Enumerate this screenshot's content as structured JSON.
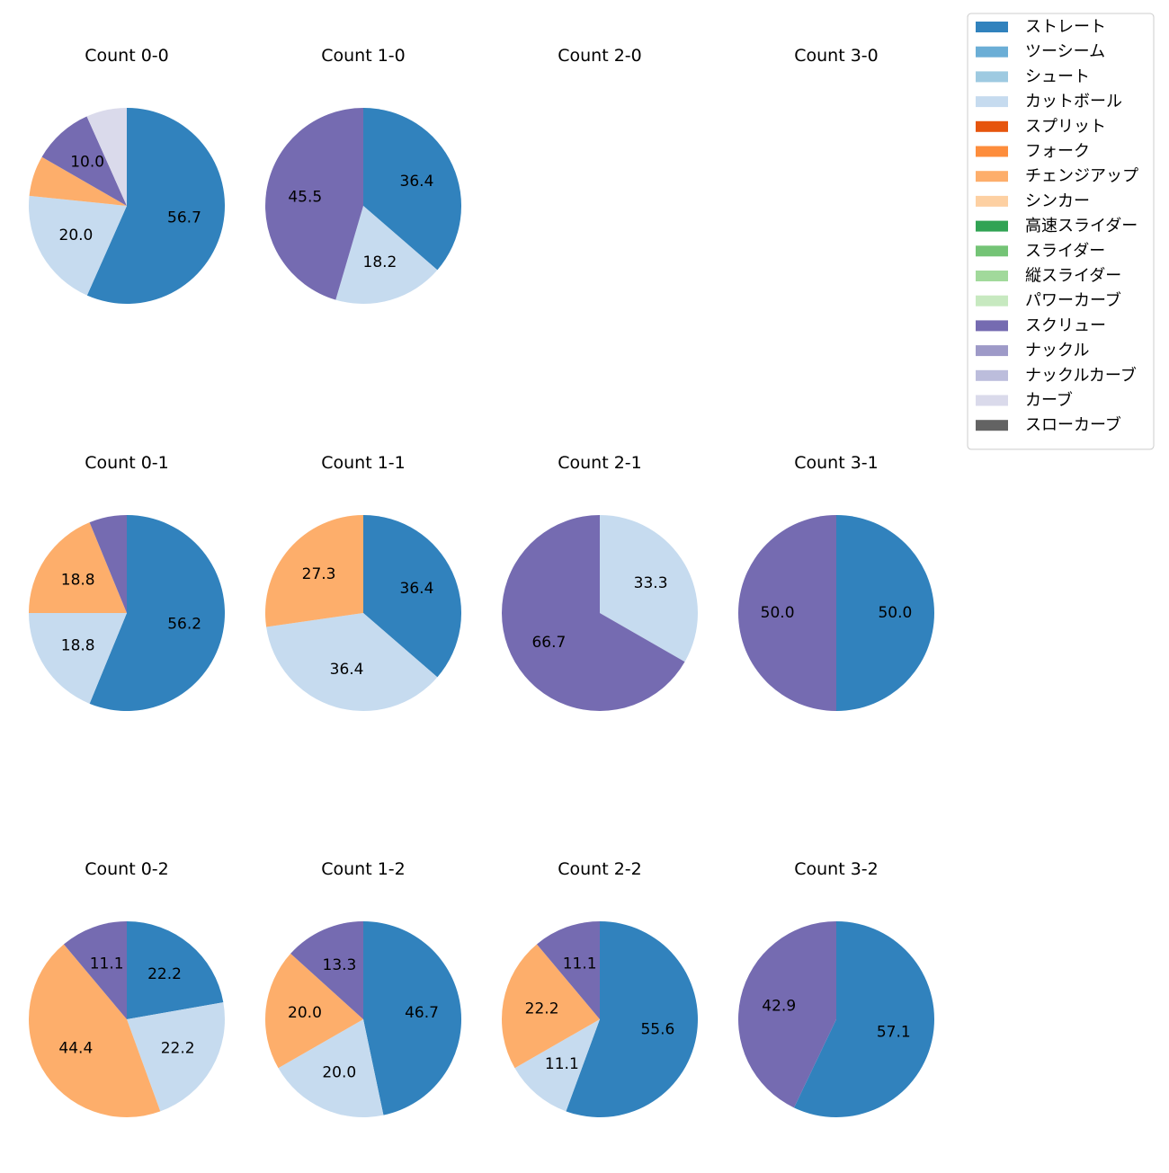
{
  "colors": {
    "ストレート": "#3182bd",
    "ツーシーム": "#6baed6",
    "シュート": "#9ecae1",
    "カットボール": "#c6dbef",
    "スプリット": "#e6550d",
    "フォーク": "#fd8d3c",
    "チェンジアップ": "#fdae6b",
    "シンカー": "#fdd0a2",
    "高速スライダー": "#31a354",
    "スライダー": "#74c476",
    "縦スライダー": "#a1d99b",
    "パワーカーブ": "#c7e9c0",
    "スクリュー": "#756bb1",
    "ナックル": "#9e9ac8",
    "ナックルカーブ": "#bcbddc",
    "カーブ": "#dadaeb",
    "スローカーブ": "#636363"
  },
  "legend": {
    "placement": "top-right",
    "entries": [
      "ストレート",
      "ツーシーム",
      "シュート",
      "カットボール",
      "スプリット",
      "フォーク",
      "チェンジアップ",
      "シンカー",
      "高速スライダー",
      "スライダー",
      "縦スライダー",
      "パワーカーブ",
      "スクリュー",
      "ナックル",
      "ナックルカーブ",
      "カーブ",
      "スローカーブ"
    ]
  },
  "chart_data": [
    {
      "type": "pie",
      "title": "Count 0-0",
      "row": 0,
      "col": 0,
      "slices": [
        {
          "name": "ストレート",
          "value": 56.7,
          "label": "56.7"
        },
        {
          "name": "カットボール",
          "value": 20.0,
          "label": "20.0"
        },
        {
          "name": "チェンジアップ",
          "value": 6.7,
          "label": ""
        },
        {
          "name": "スクリュー",
          "value": 10.0,
          "label": "10.0"
        },
        {
          "name": "カーブ",
          "value": 6.7,
          "label": ""
        }
      ]
    },
    {
      "type": "pie",
      "title": "Count 1-0",
      "row": 0,
      "col": 1,
      "slices": [
        {
          "name": "ストレート",
          "value": 36.4,
          "label": "36.4"
        },
        {
          "name": "カットボール",
          "value": 18.2,
          "label": "18.2"
        },
        {
          "name": "スクリュー",
          "value": 45.5,
          "label": "45.5"
        }
      ]
    },
    {
      "type": "pie",
      "title": "Count 2-0",
      "row": 0,
      "col": 2,
      "slices": []
    },
    {
      "type": "pie",
      "title": "Count 3-0",
      "row": 0,
      "col": 3,
      "slices": []
    },
    {
      "type": "pie",
      "title": "Count 0-1",
      "row": 1,
      "col": 0,
      "slices": [
        {
          "name": "ストレート",
          "value": 56.2,
          "label": "56.2"
        },
        {
          "name": "カットボール",
          "value": 18.8,
          "label": "18.8"
        },
        {
          "name": "チェンジアップ",
          "value": 18.8,
          "label": "18.8"
        },
        {
          "name": "スクリュー",
          "value": 6.2,
          "label": ""
        }
      ]
    },
    {
      "type": "pie",
      "title": "Count 1-1",
      "row": 1,
      "col": 1,
      "slices": [
        {
          "name": "ストレート",
          "value": 36.4,
          "label": "36.4"
        },
        {
          "name": "カットボール",
          "value": 36.4,
          "label": "36.4"
        },
        {
          "name": "チェンジアップ",
          "value": 27.3,
          "label": "27.3"
        }
      ]
    },
    {
      "type": "pie",
      "title": "Count 2-1",
      "row": 1,
      "col": 2,
      "slices": [
        {
          "name": "カットボール",
          "value": 33.3,
          "label": "33.3"
        },
        {
          "name": "スクリュー",
          "value": 66.7,
          "label": "66.7"
        }
      ]
    },
    {
      "type": "pie",
      "title": "Count 3-1",
      "row": 1,
      "col": 3,
      "slices": [
        {
          "name": "ストレート",
          "value": 50.0,
          "label": "50.0"
        },
        {
          "name": "スクリュー",
          "value": 50.0,
          "label": "50.0"
        }
      ]
    },
    {
      "type": "pie",
      "title": "Count 0-2",
      "row": 2,
      "col": 0,
      "slices": [
        {
          "name": "ストレート",
          "value": 22.2,
          "label": "22.2"
        },
        {
          "name": "カットボール",
          "value": 22.2,
          "label": "22.2"
        },
        {
          "name": "チェンジアップ",
          "value": 44.4,
          "label": "44.4"
        },
        {
          "name": "スクリュー",
          "value": 11.1,
          "label": "11.1"
        }
      ]
    },
    {
      "type": "pie",
      "title": "Count 1-2",
      "row": 2,
      "col": 1,
      "slices": [
        {
          "name": "ストレート",
          "value": 46.7,
          "label": "46.7"
        },
        {
          "name": "カットボール",
          "value": 20.0,
          "label": "20.0"
        },
        {
          "name": "チェンジアップ",
          "value": 20.0,
          "label": "20.0"
        },
        {
          "name": "スクリュー",
          "value": 13.3,
          "label": "13.3"
        }
      ]
    },
    {
      "type": "pie",
      "title": "Count 2-2",
      "row": 2,
      "col": 2,
      "slices": [
        {
          "name": "ストレート",
          "value": 55.6,
          "label": "55.6"
        },
        {
          "name": "カットボール",
          "value": 11.1,
          "label": "11.1"
        },
        {
          "name": "チェンジアップ",
          "value": 22.2,
          "label": "22.2"
        },
        {
          "name": "スクリュー",
          "value": 11.1,
          "label": "11.1"
        }
      ]
    },
    {
      "type": "pie",
      "title": "Count 3-2",
      "row": 2,
      "col": 3,
      "slices": [
        {
          "name": "ストレート",
          "value": 57.1,
          "label": "57.1"
        },
        {
          "name": "スクリュー",
          "value": 42.9,
          "label": "42.9"
        }
      ]
    }
  ]
}
